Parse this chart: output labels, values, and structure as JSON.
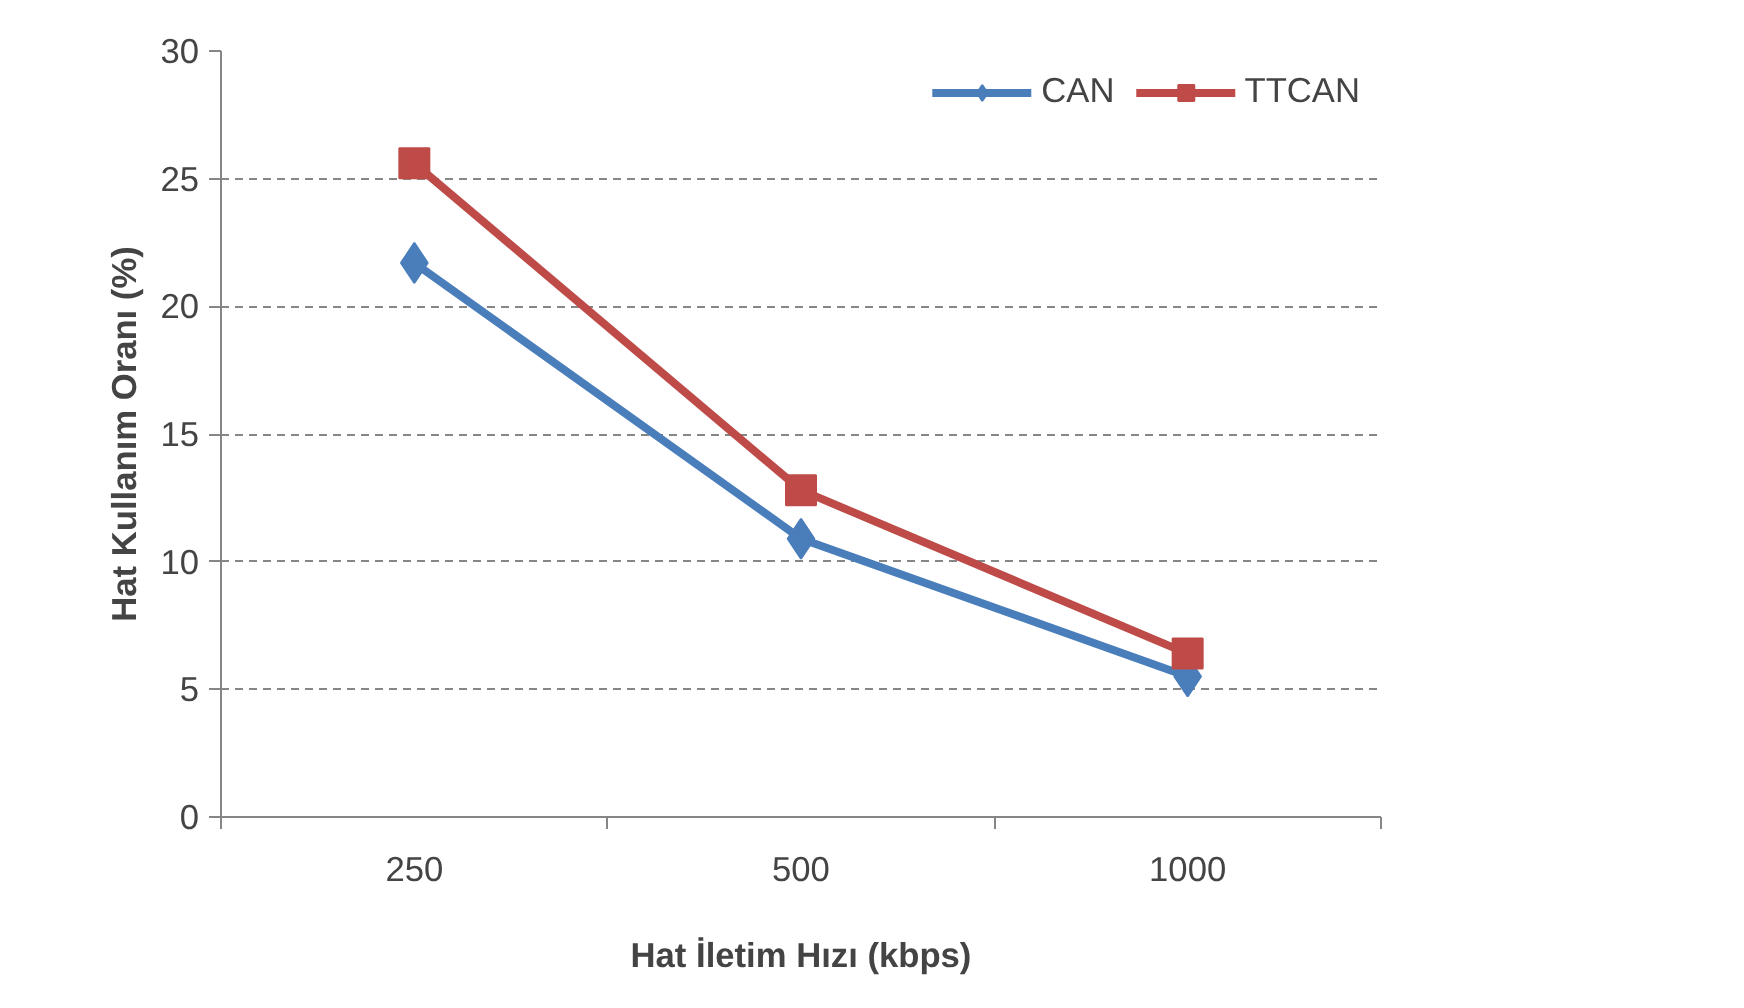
{
  "chart_data": {
    "type": "line",
    "xlabel": "Hat İletim Hızı (kbps)",
    "ylabel": "Hat Kullanım Oranı (%)",
    "categories": [
      "250",
      "500",
      "1000"
    ],
    "ylim": [
      0,
      30
    ],
    "yticks": [
      0,
      5,
      10,
      15,
      20,
      25,
      30
    ],
    "grid": "y",
    "legend": "top right",
    "line_style": "solid",
    "series": [
      {
        "name": "CAN",
        "color": "#4a7ebb",
        "marker": "diamond",
        "values": [
          21.7,
          10.9,
          5.5
        ]
      },
      {
        "name": "TTCAN",
        "color": "#be4b48",
        "marker": "square",
        "values": [
          25.6,
          12.8,
          6.4
        ]
      }
    ]
  }
}
